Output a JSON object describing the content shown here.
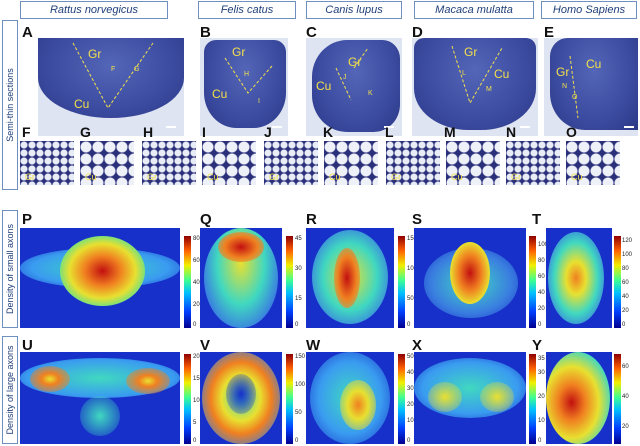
{
  "species": [
    "Rattus norvegicus",
    "Felis catus",
    "Canis lupus",
    "Macaca mulatta",
    "Homo Sapiens"
  ],
  "row_labels": [
    "Semi-thin sections",
    "Density of small axons",
    "Density of large axons"
  ],
  "panels_sections": [
    "A",
    "B",
    "C",
    "D",
    "E"
  ],
  "panels_zoom": [
    "F",
    "G",
    "H",
    "I",
    "J",
    "K",
    "L",
    "M",
    "N",
    "O"
  ],
  "panels_small": [
    "P",
    "Q",
    "R",
    "S",
    "T"
  ],
  "panels_large": [
    "U",
    "V",
    "W",
    "X",
    "Y"
  ],
  "region_labels": {
    "gr": "Gr",
    "cu": "Cu"
  },
  "sample_markers": [
    "F",
    "G",
    "H",
    "I",
    "J",
    "K",
    "L",
    "M",
    "N",
    "O"
  ],
  "small_scales": [
    [
      "80",
      "60",
      "40",
      "20",
      "0"
    ],
    [
      "45",
      "30",
      "15",
      "0"
    ],
    [
      "150",
      "100",
      "50",
      "0"
    ],
    [
      "100",
      "80",
      "60",
      "40",
      "20",
      "0"
    ],
    [
      "120",
      "100",
      "80",
      "60",
      "40",
      "20",
      "0"
    ]
  ],
  "large_scales": [
    [
      "20",
      "15",
      "10",
      "5",
      "0"
    ],
    [
      "150",
      "100",
      "50",
      "0"
    ],
    [
      "50",
      "40",
      "30",
      "20",
      "10",
      "0"
    ],
    [
      "35",
      "30",
      "20",
      "10",
      "0"
    ],
    [
      "60",
      "40",
      "20"
    ]
  ],
  "colors": {
    "tissue": "#3b4ba0",
    "label_yellow": "#f3e04a",
    "frame_blue": "#6f8fbf",
    "heat_low": "#1730c9",
    "heat_high": "#c21010"
  }
}
